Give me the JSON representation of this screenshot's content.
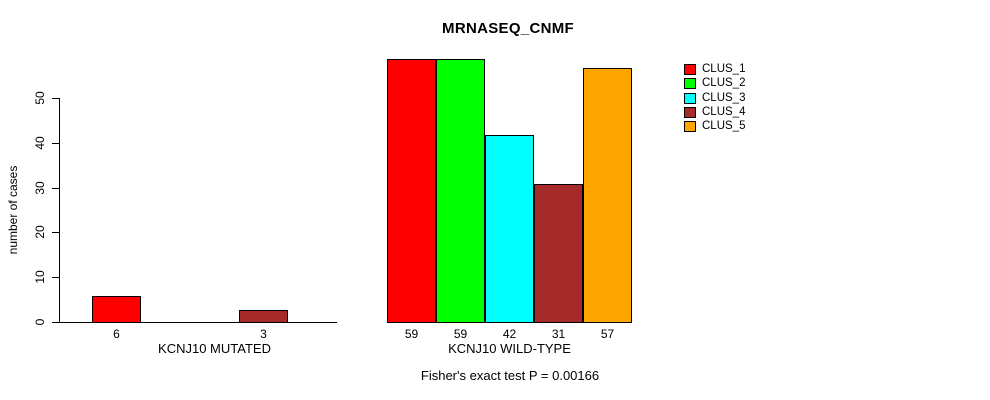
{
  "chart_data": {
    "type": "bar",
    "title": "MRNASEQ_CNMF",
    "ylabel": "number of cases",
    "ylim": [
      0,
      59
    ],
    "yticks": [
      0,
      10,
      20,
      30,
      40,
      50
    ],
    "grid": false,
    "legend_position": "right",
    "categories": [
      "KCNJ10 MUTATED",
      "KCNJ10 WILD-TYPE"
    ],
    "series": [
      {
        "name": "CLUS_1",
        "color": "#FF0000",
        "values": [
          6,
          59
        ]
      },
      {
        "name": "CLUS_2",
        "color": "#00FF00",
        "values": [
          0,
          59
        ]
      },
      {
        "name": "CLUS_3",
        "color": "#00FFFF",
        "values": [
          0,
          42
        ]
      },
      {
        "name": "CLUS_4",
        "color": "#A52A2A",
        "values": [
          3,
          31
        ]
      },
      {
        "name": "CLUS_5",
        "color": "#FFA500",
        "values": [
          0,
          57
        ]
      }
    ],
    "bar_value_labels_visible_for_nonzero_only": true,
    "annotation": "Fisher's exact test P = 0.00166",
    "axis_color": "#000000",
    "background_color": "#FFFFFF"
  }
}
